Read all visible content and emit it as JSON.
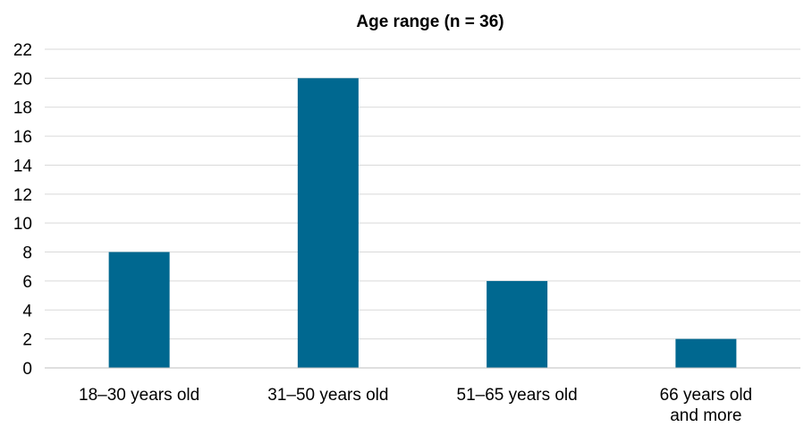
{
  "chart_data": {
    "type": "bar",
    "title": "Age range (n = 36)",
    "categories": [
      "18–30 years old",
      "31–50 years old",
      "51–65 years old",
      "66 years old and more"
    ],
    "category_lines": [
      [
        "18–30 years old"
      ],
      [
        "31–50 years old"
      ],
      [
        "51–65 years old"
      ],
      [
        "66 years old",
        "and more"
      ]
    ],
    "values": [
      8,
      20,
      6,
      2
    ],
    "xlabel": "",
    "ylabel": "",
    "ylim": [
      0,
      22
    ],
    "yticks": [
      0,
      2,
      4,
      6,
      8,
      10,
      12,
      14,
      16,
      18,
      20,
      22
    ],
    "grid": true,
    "legend": "none",
    "bar_color": "#006890"
  }
}
